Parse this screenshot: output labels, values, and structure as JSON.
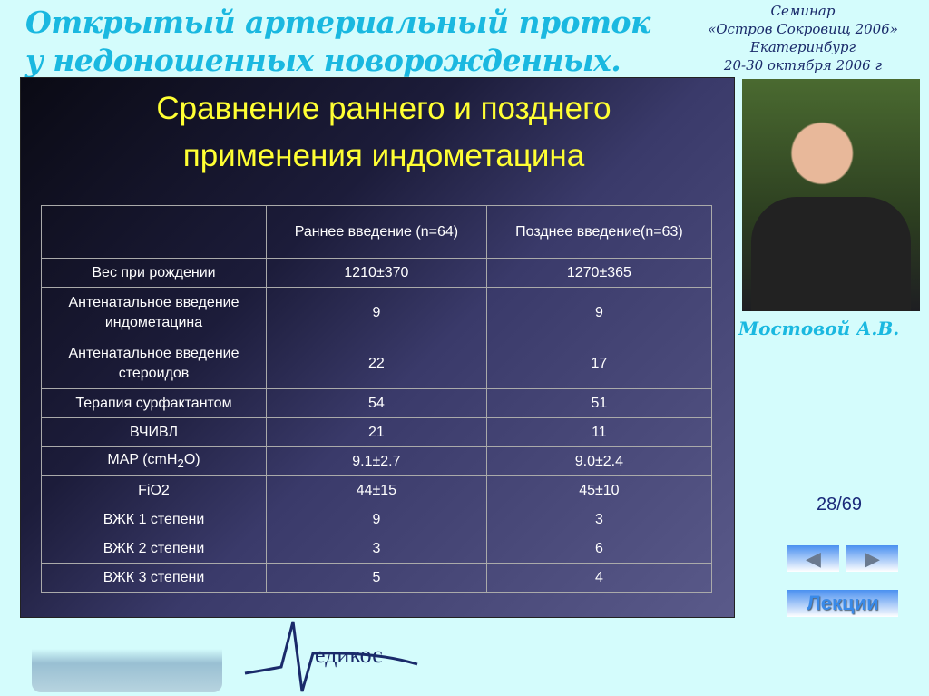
{
  "header": {
    "title_lines": [
      "Открытый артериальный проток",
      "у недоношенных новорожденных."
    ],
    "seminar_lines": [
      "Семинар",
      "«Остров Сокровищ 2006»",
      "Екатеринбург",
      "20-30 октября 2006 г"
    ]
  },
  "slide": {
    "title_lines": [
      "Сравнение раннего и позднего",
      "применения индометацина"
    ],
    "table": {
      "headers": [
        "",
        "Раннее введение (n=64)",
        "Позднее введение(n=63)"
      ],
      "rows": [
        {
          "label": "Вес при рождении",
          "early": "1210±370",
          "late": "1270±365"
        },
        {
          "label": "Антенатальное введение индометацина",
          "early": "9",
          "late": "9"
        },
        {
          "label": "Антенатальное введение стероидов",
          "early": "22",
          "late": "17"
        },
        {
          "label": "Терапия сурфактантом",
          "early": "54",
          "late": "51"
        },
        {
          "label": "ВЧИВЛ",
          "early": "21",
          "late": "11"
        },
        {
          "label": "MAP (cmH2O)",
          "early": "9.1±2.7",
          "late": "9.0±2.4"
        },
        {
          "label": "FiO2",
          "early": "44±15",
          "late": "45±10"
        },
        {
          "label": "ВЖК 1 степени",
          "early": "9",
          "late": "3"
        },
        {
          "label": "ВЖК 2 степени",
          "early": "3",
          "late": "6"
        },
        {
          "label": "ВЖК 3 степени",
          "early": "5",
          "late": "4"
        }
      ]
    }
  },
  "sidebar": {
    "author": "Мостовой А.В.",
    "page_counter": "28/69",
    "prev_icon": "triangle-left-icon",
    "next_icon": "triangle-right-icon",
    "lectures_label": "Лекции"
  },
  "footer": {
    "logo_text": "едикос"
  }
}
